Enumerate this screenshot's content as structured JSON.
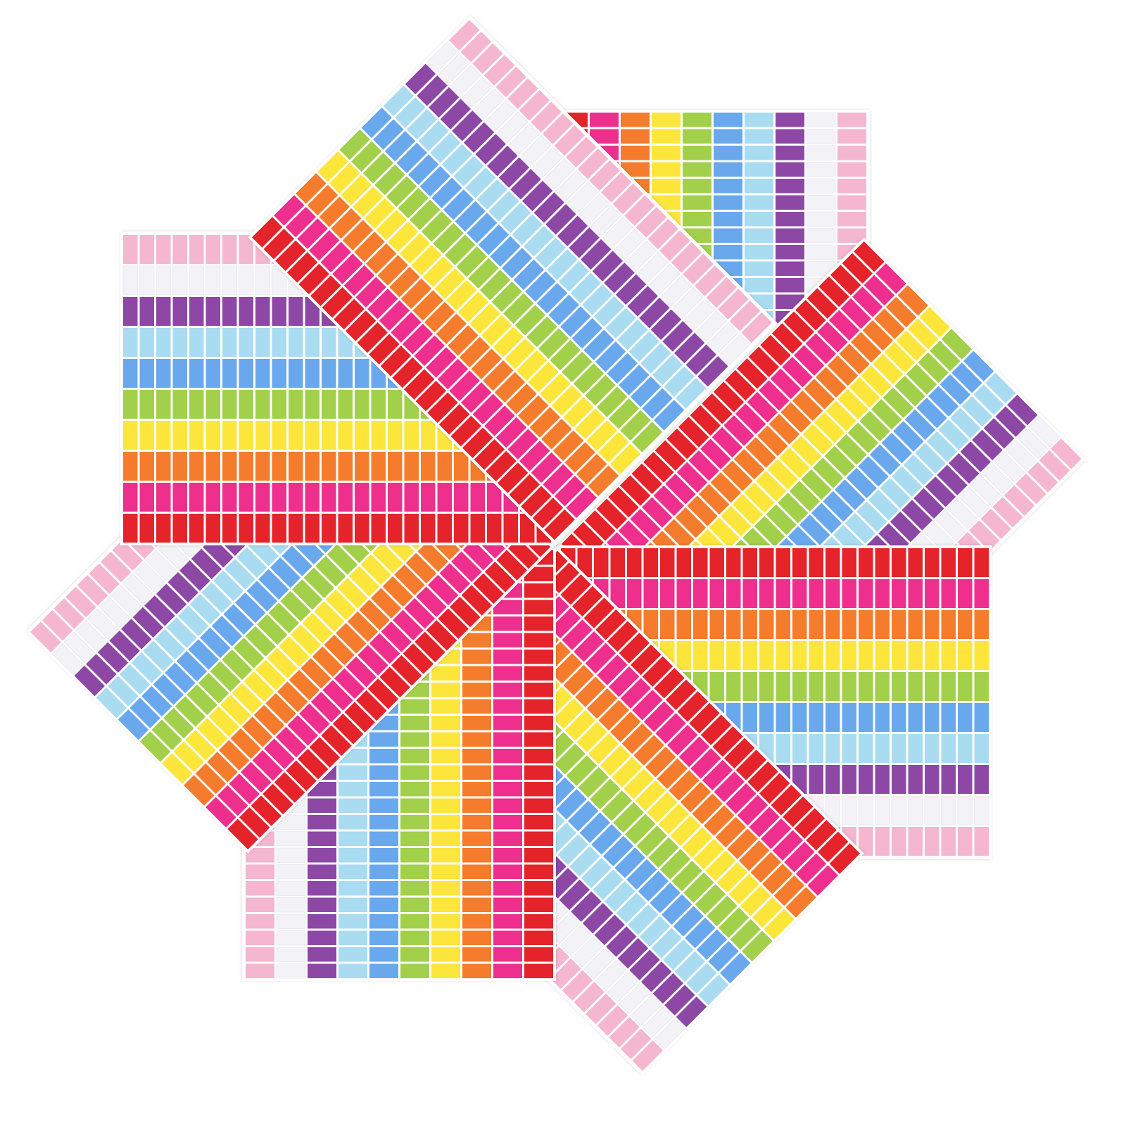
{
  "subject": {
    "sheet_count": 8,
    "sticker_rows_per_sheet": 26,
    "color_bands": [
      {
        "name": "red",
        "hex": "#e5232a"
      },
      {
        "name": "pink",
        "hex": "#ee2f8e"
      },
      {
        "name": "orange",
        "hex": "#f47c2c"
      },
      {
        "name": "yellow",
        "hex": "#fce63c"
      },
      {
        "name": "green",
        "hex": "#a2d04b"
      },
      {
        "name": "blue",
        "hex": "#6aa8ee"
      },
      {
        "name": "light-blue",
        "hex": "#a9dcf0"
      },
      {
        "name": "purple",
        "hex": "#8d48a6"
      },
      {
        "name": "white",
        "hex": "#f3f2f6"
      },
      {
        "name": "light-pink",
        "hex": "#f5b6cf"
      }
    ],
    "sheet_color": "#ffffff",
    "background": "#ffffff"
  }
}
